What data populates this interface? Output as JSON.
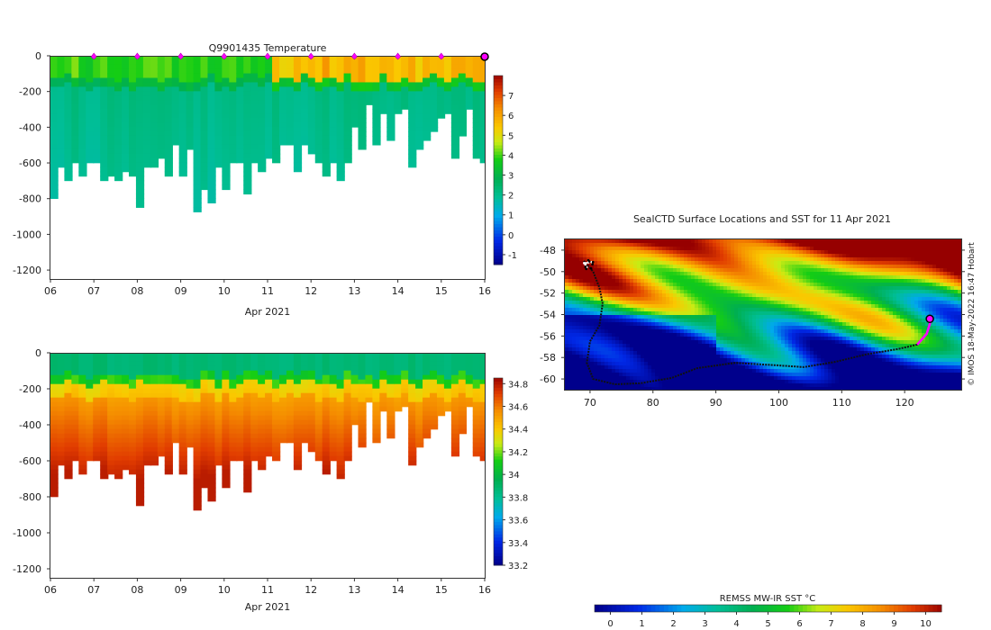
{
  "chart_data": [
    {
      "id": "temperature-section",
      "type": "heatmap",
      "title": "Q9901435  Temperature",
      "xlabel": "Apr 2021",
      "ylabel": "",
      "x_ticks": [
        "06",
        "07",
        "08",
        "09",
        "10",
        "11",
        "12",
        "13",
        "14",
        "15",
        "16"
      ],
      "x_range": [
        6,
        16
      ],
      "y_ticks": [
        0,
        -200,
        -400,
        -600,
        -800,
        -1000,
        -1200
      ],
      "y_range": [
        -1250,
        0
      ],
      "colorbar": {
        "range": [
          -1.5,
          8
        ],
        "ticks": [
          -1,
          0,
          1,
          2,
          3,
          4,
          5,
          6,
          7
        ]
      },
      "profile_markers_day": [
        7,
        8,
        9,
        10,
        11,
        12,
        13,
        14,
        15
      ],
      "latest_marker_day": 16,
      "summary": "Upper ~130 m at 3–5 °C (6–11 Apr) warming to 5–6 °C (11–16 Apr); 1.5–2.5 °C below to 700–950 m"
    },
    {
      "id": "salinity-section",
      "type": "heatmap",
      "title": "",
      "xlabel": "Apr 2021",
      "ylabel": "",
      "x_ticks": [
        "06",
        "07",
        "08",
        "09",
        "10",
        "11",
        "12",
        "13",
        "14",
        "15",
        "16"
      ],
      "x_range": [
        6,
        16
      ],
      "y_ticks": [
        0,
        -200,
        -400,
        -600,
        -800,
        -1000,
        -1200
      ],
      "y_range": [
        -1250,
        0
      ],
      "colorbar": {
        "range": [
          33.2,
          34.85
        ],
        "ticks": [
          "33.2",
          "33.4",
          "33.6",
          "33.8",
          "34",
          "34.2",
          "34.4",
          "34.6",
          "34.8"
        ]
      },
      "summary": "Fresh surface layer ~33.8–33.9; halocline 130–250 m; deep water 34.4–34.75"
    },
    {
      "id": "sst-map",
      "type": "heatmap",
      "title": "SealCTD Surface Locations and SST for 11 Apr 2021",
      "x_ticks": [
        "70",
        "80",
        "90",
        "100",
        "110",
        "120"
      ],
      "x_range": [
        66,
        129
      ],
      "y_ticks": [
        "-48",
        "-50",
        "-52",
        "-54",
        "-56",
        "-58",
        "-60"
      ],
      "y_range": [
        -61,
        -47
      ],
      "colorbar": {
        "label": "REMSS MW-IR SST °C",
        "range": [
          -0.5,
          10.5
        ],
        "ticks": [
          "0",
          "1",
          "2",
          "3",
          "4",
          "5",
          "6",
          "7",
          "8",
          "9",
          "10"
        ]
      },
      "track": [
        [
          69,
          -49
        ],
        [
          70.5,
          -50
        ],
        [
          71.5,
          -51.5
        ],
        [
          72,
          -53
        ],
        [
          71.5,
          -55
        ],
        [
          70,
          -56.5
        ],
        [
          69.5,
          -58.5
        ],
        [
          70.5,
          -60
        ],
        [
          74,
          -60.5
        ],
        [
          78,
          -60.4
        ],
        [
          83,
          -59.9
        ],
        [
          87,
          -59
        ],
        [
          93,
          -58.5
        ],
        [
          99,
          -58.7
        ],
        [
          104,
          -58.9
        ],
        [
          109,
          -58.4
        ],
        [
          114,
          -57.7
        ],
        [
          119,
          -57.2
        ],
        [
          122,
          -56.8
        ],
        [
          123.5,
          -55.8
        ],
        [
          124.2,
          -54.5
        ]
      ],
      "latest_position": [
        124,
        -54.4
      ],
      "credit": "© IMOS 18-May-2022 16:47 Hobart"
    }
  ]
}
